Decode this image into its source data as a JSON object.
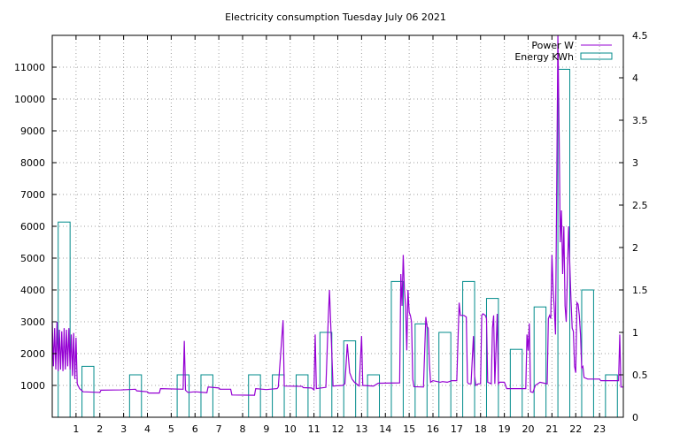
{
  "chart_data": {
    "type": "line",
    "title": "Electricity consumption Tuesday July 06 2021",
    "legend_position": "top-right",
    "grid": true,
    "x_ticks": [
      "1",
      "2",
      "3",
      "4",
      "5",
      "6",
      "7",
      "8",
      "9",
      "10",
      "11",
      "12",
      "13",
      "14",
      "15",
      "16",
      "17",
      "18",
      "19",
      "20",
      "21",
      "22",
      "23"
    ],
    "xlim": [
      0,
      24
    ],
    "y_left_ticks": [
      "1000",
      "2000",
      "3000",
      "4000",
      "5000",
      "6000",
      "7000",
      "8000",
      "9000",
      "10000",
      "11000"
    ],
    "ylim_left": [
      0,
      12000
    ],
    "y_right_ticks": [
      "0",
      "0.5",
      "1",
      "1.5",
      "2",
      "2.5",
      "3",
      "3.5",
      "4",
      "4.5"
    ],
    "ylim_right": [
      0,
      4.5
    ],
    "series": [
      {
        "name": "Power W",
        "axis": "left",
        "color": "#9400d3",
        "style": "line",
        "points": [
          [
            0.0,
            3000
          ],
          [
            0.05,
            1600
          ],
          [
            0.1,
            2800
          ],
          [
            0.15,
            1500
          ],
          [
            0.2,
            3000
          ],
          [
            0.25,
            1450
          ],
          [
            0.3,
            2750
          ],
          [
            0.35,
            1500
          ],
          [
            0.4,
            2700
          ],
          [
            0.45,
            1450
          ],
          [
            0.5,
            2800
          ],
          [
            0.55,
            1500
          ],
          [
            0.6,
            2750
          ],
          [
            0.65,
            1600
          ],
          [
            0.7,
            2800
          ],
          [
            0.75,
            1500
          ],
          [
            0.8,
            2600
          ],
          [
            0.85,
            1300
          ],
          [
            0.9,
            2650
          ],
          [
            0.95,
            1200
          ],
          [
            1.0,
            2500
          ],
          [
            1.05,
            1050
          ],
          [
            1.15,
            900
          ],
          [
            1.3,
            800
          ],
          [
            2.0,
            780
          ],
          [
            2.05,
            850
          ],
          [
            2.9,
            860
          ],
          [
            3.5,
            880
          ],
          [
            3.55,
            830
          ],
          [
            4.0,
            800
          ],
          [
            4.05,
            760
          ],
          [
            4.5,
            760
          ],
          [
            4.55,
            900
          ],
          [
            5.5,
            880
          ],
          [
            5.55,
            2400
          ],
          [
            5.6,
            850
          ],
          [
            5.7,
            780
          ],
          [
            6.0,
            800
          ],
          [
            6.5,
            770
          ],
          [
            6.55,
            950
          ],
          [
            7.0,
            920
          ],
          [
            7.05,
            880
          ],
          [
            7.5,
            880
          ],
          [
            7.55,
            700
          ],
          [
            8.5,
            690
          ],
          [
            8.55,
            900
          ],
          [
            9.0,
            870
          ],
          [
            9.45,
            900
          ],
          [
            9.5,
            950
          ],
          [
            9.7,
            3050
          ],
          [
            9.75,
            980
          ],
          [
            10.5,
            970
          ],
          [
            10.55,
            930
          ],
          [
            10.9,
            920
          ],
          [
            11.0,
            860
          ],
          [
            11.05,
            2600
          ],
          [
            11.1,
            900
          ],
          [
            11.5,
            940
          ],
          [
            11.6,
            3100
          ],
          [
            11.65,
            4000
          ],
          [
            11.7,
            3000
          ],
          [
            11.8,
            980
          ],
          [
            12.2,
            1000
          ],
          [
            12.3,
            1050
          ],
          [
            12.4,
            2300
          ],
          [
            12.5,
            1400
          ],
          [
            12.6,
            1200
          ],
          [
            12.7,
            1100
          ],
          [
            12.9,
            980
          ],
          [
            13.0,
            2550
          ],
          [
            13.05,
            1000
          ],
          [
            13.5,
            980
          ],
          [
            13.7,
            1070
          ],
          [
            14.6,
            1080
          ],
          [
            14.65,
            4500
          ],
          [
            14.7,
            3500
          ],
          [
            14.75,
            5100
          ],
          [
            14.8,
            4000
          ],
          [
            14.85,
            3500
          ],
          [
            14.9,
            2100
          ],
          [
            14.95,
            4000
          ],
          [
            15.0,
            3300
          ],
          [
            15.05,
            3200
          ],
          [
            15.1,
            3000
          ],
          [
            15.15,
            1200
          ],
          [
            15.2,
            960
          ],
          [
            15.6,
            950
          ],
          [
            15.7,
            3150
          ],
          [
            15.75,
            2850
          ],
          [
            15.8,
            2800
          ],
          [
            15.85,
            1700
          ],
          [
            15.9,
            1100
          ],
          [
            16.0,
            1150
          ],
          [
            16.3,
            1100
          ],
          [
            16.4,
            1120
          ],
          [
            16.6,
            1100
          ],
          [
            16.8,
            1150
          ],
          [
            17.0,
            1150
          ],
          [
            17.1,
            3600
          ],
          [
            17.15,
            3200
          ],
          [
            17.3,
            3200
          ],
          [
            17.4,
            3150
          ],
          [
            17.45,
            1100
          ],
          [
            17.5,
            1050
          ],
          [
            17.6,
            1050
          ],
          [
            17.7,
            2550
          ],
          [
            17.75,
            1300
          ],
          [
            17.8,
            1000
          ],
          [
            17.9,
            1050
          ],
          [
            18.0,
            1050
          ],
          [
            18.05,
            3200
          ],
          [
            18.1,
            3250
          ],
          [
            18.2,
            3200
          ],
          [
            18.25,
            3100
          ],
          [
            18.3,
            1100
          ],
          [
            18.45,
            1050
          ],
          [
            18.5,
            2800
          ],
          [
            18.55,
            3200
          ],
          [
            18.6,
            1050
          ],
          [
            18.7,
            3250
          ],
          [
            18.75,
            1050
          ],
          [
            18.8,
            1100
          ],
          [
            19.0,
            1100
          ],
          [
            19.1,
            900
          ],
          [
            19.9,
            900
          ],
          [
            19.95,
            2600
          ],
          [
            20.0,
            2100
          ],
          [
            20.05,
            2950
          ],
          [
            20.1,
            800
          ],
          [
            20.2,
            780
          ],
          [
            20.3,
            1000
          ],
          [
            20.5,
            1100
          ],
          [
            20.8,
            1050
          ],
          [
            20.85,
            3100
          ],
          [
            20.9,
            3200
          ],
          [
            20.95,
            3100
          ],
          [
            21.0,
            5100
          ],
          [
            21.05,
            4000
          ],
          [
            21.1,
            3400
          ],
          [
            21.15,
            2600
          ],
          [
            21.2,
            7200
          ],
          [
            21.25,
            12000
          ],
          [
            21.3,
            9000
          ],
          [
            21.35,
            5500
          ],
          [
            21.4,
            6500
          ],
          [
            21.45,
            4500
          ],
          [
            21.5,
            6000
          ],
          [
            21.55,
            3500
          ],
          [
            21.6,
            3000
          ],
          [
            21.7,
            6000
          ],
          [
            21.75,
            4800
          ],
          [
            21.8,
            3700
          ],
          [
            21.85,
            2800
          ],
          [
            21.9,
            2700
          ],
          [
            21.95,
            1600
          ],
          [
            22.0,
            1400
          ],
          [
            22.05,
            3600
          ],
          [
            22.1,
            3550
          ],
          [
            22.15,
            3200
          ],
          [
            22.2,
            2600
          ],
          [
            22.25,
            1550
          ],
          [
            22.3,
            1600
          ],
          [
            22.35,
            1250
          ],
          [
            22.5,
            1200
          ],
          [
            23.0,
            1200
          ],
          [
            23.05,
            1150
          ],
          [
            23.8,
            1150
          ],
          [
            23.85,
            2600
          ],
          [
            23.9,
            950
          ],
          [
            24.0,
            950
          ]
        ]
      },
      {
        "name": "Energy KWh",
        "axis": "right",
        "color": "#008b8b",
        "style": "steps",
        "values": [
          2.3,
          0.6,
          0,
          0.5,
          0,
          0.5,
          0.5,
          0,
          0.5,
          0.5,
          0.5,
          1.0,
          0.9,
          0.5,
          1.6,
          1.1,
          1.0,
          1.6,
          1.4,
          0.8,
          1.3,
          4.1,
          1.5,
          0.5
        ]
      }
    ]
  }
}
